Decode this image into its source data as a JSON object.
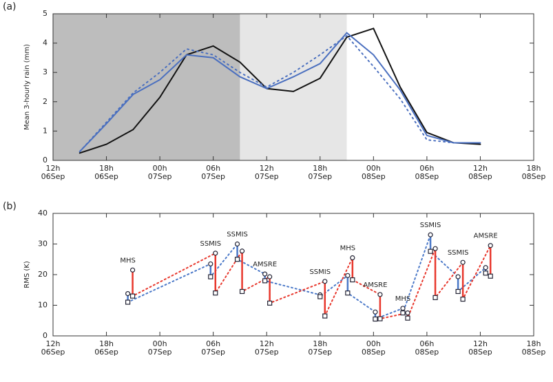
{
  "chart_data": [
    {
      "type": "line",
      "panel": "(a)",
      "ylabel": "Mean 3-hourly rain (mm)",
      "x": [
        3,
        6,
        9,
        12,
        15,
        18,
        21,
        24,
        27,
        30,
        33,
        36,
        39,
        42,
        45,
        48
      ],
      "xlim": [
        0,
        54
      ],
      "xticks": [
        {
          "value": 0,
          "label": "12h",
          "sublabel": "06Sep"
        },
        {
          "value": 6,
          "label": "18h",
          "sublabel": "06Sep"
        },
        {
          "value": 12,
          "label": "00h",
          "sublabel": "07Sep"
        },
        {
          "value": 18,
          "label": "06h",
          "sublabel": "07Sep"
        },
        {
          "value": 24,
          "label": "12h",
          "sublabel": "07Sep"
        },
        {
          "value": 30,
          "label": "18h",
          "sublabel": "07Sep"
        },
        {
          "value": 36,
          "label": "00h",
          "sublabel": "08Sep"
        },
        {
          "value": 42,
          "label": "06h",
          "sublabel": "08Sep"
        },
        {
          "value": 48,
          "label": "12h",
          "sublabel": "08Sep"
        },
        {
          "value": 54,
          "label": "18h",
          "sublabel": "08Sep"
        }
      ],
      "ylim": [
        0,
        5
      ],
      "yticks": [
        0,
        1,
        2,
        3,
        4,
        5
      ],
      "shading": [
        {
          "from": 0,
          "to": 21,
          "color": "#bdbdbd"
        },
        {
          "from": 21,
          "to": 33,
          "color": "#e6e6e6"
        }
      ],
      "series": [
        {
          "color": "#111111",
          "dash": false,
          "values": [
            0.25,
            0.55,
            1.05,
            2.15,
            3.6,
            3.9,
            3.35,
            2.45,
            2.35,
            2.8,
            4.2,
            4.5,
            2.5,
            0.95,
            0.6,
            0.55
          ]
        },
        {
          "color": "#4a6fbf",
          "dash": false,
          "values": [
            0.3,
            1.25,
            2.25,
            2.75,
            3.6,
            3.5,
            2.85,
            2.45,
            2.85,
            3.3,
            4.35,
            3.6,
            2.4,
            0.85,
            0.6,
            0.6
          ]
        },
        {
          "color": "#4a6fbf",
          "dash": true,
          "values": [
            0.3,
            1.3,
            2.3,
            3.0,
            3.8,
            3.6,
            3.0,
            2.5,
            3.0,
            3.6,
            4.25,
            3.2,
            2.1,
            0.7,
            0.6,
            0.6
          ]
        }
      ]
    },
    {
      "type": "pairs",
      "panel": "(b)",
      "ylabel": "RMS (K)",
      "x": [
        8.4,
        17.7,
        20.7,
        23.8,
        30,
        33.1,
        36.2,
        39.3,
        42.4,
        45.5,
        48.6
      ],
      "labels": [
        "MHS",
        "SSMIS",
        "SSMIS",
        "AMSRE",
        "SSMIS",
        "MHS",
        "AMSRE",
        "MHS",
        "SSMIS",
        "SSMIS",
        "AMSRE"
      ],
      "xlim": [
        0,
        54
      ],
      "xticks": [
        {
          "value": 0,
          "label": "12h",
          "sublabel": "06Sep"
        },
        {
          "value": 6,
          "label": "18h",
          "sublabel": "06Sep"
        },
        {
          "value": 12,
          "label": "00h",
          "sublabel": "07Sep"
        },
        {
          "value": 18,
          "label": "06h",
          "sublabel": "07Sep"
        },
        {
          "value": 24,
          "label": "12h",
          "sublabel": "07Sep"
        },
        {
          "value": 30,
          "label": "18h",
          "sublabel": "07Sep"
        },
        {
          "value": 36,
          "label": "00h",
          "sublabel": "08Sep"
        },
        {
          "value": 42,
          "label": "06h",
          "sublabel": "08Sep"
        },
        {
          "value": 48,
          "label": "12h",
          "sublabel": "08Sep"
        },
        {
          "value": 54,
          "label": "18h",
          "sublabel": "08Sep"
        }
      ],
      "ylim": [
        0,
        40
      ],
      "yticks": [
        0,
        10,
        20,
        30,
        40
      ],
      "series": [
        {
          "color": "#4a78c8",
          "values_before": [
            13.8,
            23.5,
            30,
            20.2,
            13.4,
            19.7,
            7.8,
            9,
            33,
            19.3,
            22.3
          ],
          "values_after": [
            11,
            19.3,
            25,
            18,
            12.8,
            14,
            5.5,
            7.5,
            27.6,
            14.5,
            20.5
          ]
        },
        {
          "color": "#e8372c",
          "values_before": [
            21.5,
            27,
            27.7,
            19.3,
            17.8,
            25.5,
            13.5,
            7.5,
            28.5,
            24,
            29.5
          ],
          "values_after": [
            13,
            14,
            14.5,
            10.7,
            6.5,
            18.3,
            5.6,
            5.8,
            12.5,
            12,
            19.5
          ]
        }
      ]
    }
  ]
}
